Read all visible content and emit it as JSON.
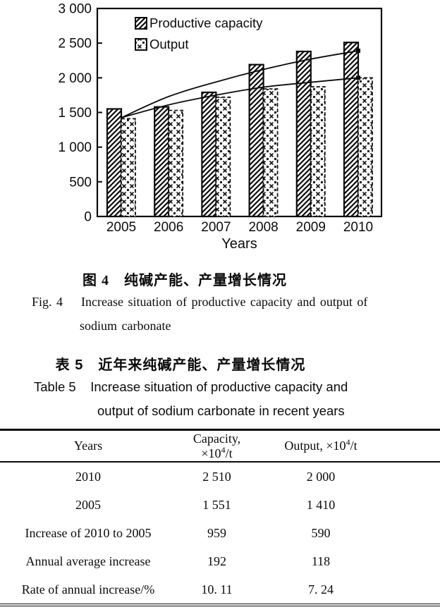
{
  "figure": {
    "caption_zh": "图 4　纯碱产能、产量增长情况",
    "caption_en_line1": "Fig. 4    Increase situation of productive capacity and output of",
    "caption_en_line2": "sodium carbonate"
  },
  "table5": {
    "caption_zh": "表 5　近年来纯碱产能、产量增长情况",
    "caption_en_line1": "Table 5    Increase situation of productive capacity and",
    "caption_en_line2": "output of sodium carbonate in recent years",
    "headers": [
      {
        "pre": "Years",
        "sup": "",
        "post": ""
      },
      {
        "pre": "Capacity, ×10",
        "sup": "4",
        "post": "/t"
      },
      {
        "pre": "Output, ×10",
        "sup": "4",
        "post": "/t"
      }
    ],
    "rows": [
      [
        "2010",
        "2 510",
        "2 000"
      ],
      [
        "2005",
        "1 551",
        "1 410"
      ],
      [
        "Increase of 2010 to 2005",
        "959",
        "590"
      ],
      [
        "Annual average increase",
        "192",
        "118"
      ],
      [
        "Rate of annual increase/%",
        "10. 11",
        "7. 24"
      ]
    ]
  },
  "chart_data": {
    "type": "bar",
    "title": "",
    "categories": [
      "2005",
      "2006",
      "2007",
      "2008",
      "2009",
      "2010"
    ],
    "series": [
      {
        "name": "Productive capacity",
        "pattern": "diagonal-hatch",
        "values": [
          1551,
          1580,
          1790,
          2190,
          2380,
          2510
        ]
      },
      {
        "name": "Output",
        "pattern": "diamond-crosshatch",
        "values": [
          1410,
          1530,
          1720,
          1840,
          1870,
          2000
        ]
      }
    ],
    "trend_lines": [
      {
        "series": "Productive capacity",
        "values": [
          1425,
          1730,
          1940,
          2120,
          2270,
          2390
        ]
      },
      {
        "series": "Output",
        "values": [
          1425,
          1610,
          1750,
          1865,
          1935,
          2000
        ]
      }
    ],
    "xlabel": "Years",
    "ylabel": "",
    "ylim": [
      0,
      3000
    ],
    "ytick_interval": 500,
    "ytick_labels": [
      "0",
      "500",
      "1 000",
      "1 500",
      "2 000",
      "2 500",
      "3 000"
    ],
    "legend": [
      "Productive capacity",
      "Output"
    ],
    "legend_position": "top-left-inside",
    "grid": false
  }
}
